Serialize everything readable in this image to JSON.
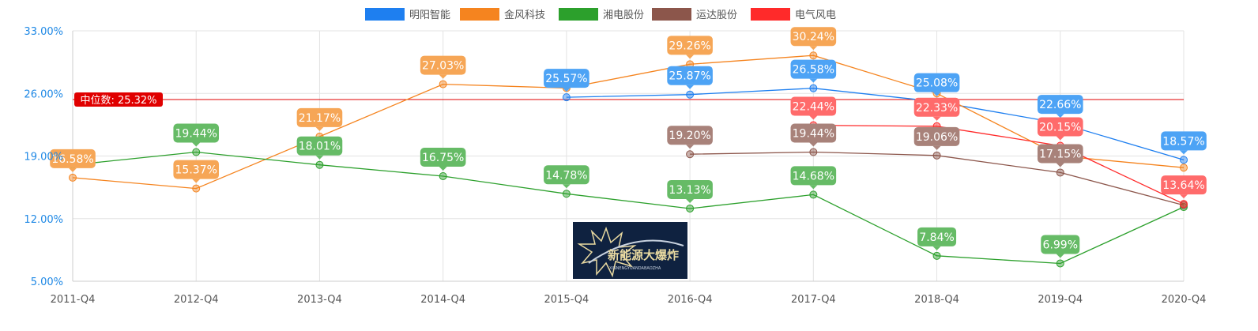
{
  "chart_data": {
    "type": "line",
    "categories": [
      "2011-Q4",
      "2012-Q4",
      "2013-Q4",
      "2014-Q4",
      "2015-Q4",
      "2016-Q4",
      "2017-Q4",
      "2018-Q4",
      "2019-Q4",
      "2020-Q4"
    ],
    "y_ticks": [
      "33.00%",
      "26.00%",
      "19.00%",
      "12.00%",
      "5.00%"
    ],
    "ylim": [
      5,
      33
    ],
    "grid": true,
    "legend_position": "top",
    "series": [
      {
        "name": "明阳智能",
        "color": "#1e7ff0",
        "label_color": "#4da3f5",
        "values": [
          null,
          null,
          null,
          null,
          25.57,
          25.87,
          26.58,
          25.08,
          22.66,
          18.57
        ],
        "labels": [
          null,
          null,
          null,
          null,
          "25.57%",
          "25.87%",
          "26.58%",
          "25.08%",
          "22.66%",
          "18.57%"
        ]
      },
      {
        "name": "金风科技",
        "color": "#f5841f",
        "label_color": "#f6a656",
        "values": [
          16.58,
          15.37,
          21.17,
          27.03,
          26.6,
          29.26,
          30.24,
          26.0,
          19.0,
          17.7
        ],
        "labels": [
          "16.58%",
          "15.37%",
          "21.17%",
          "27.03%",
          null,
          "29.26%",
          "30.24%",
          null,
          null,
          null
        ]
      },
      {
        "name": "湘电股份",
        "color": "#2ca02c",
        "label_color": "#66bb66",
        "values": [
          18.0,
          19.44,
          18.01,
          16.75,
          14.78,
          13.13,
          14.68,
          7.84,
          6.99,
          13.3
        ],
        "labels": [
          null,
          "19.44%",
          "18.01%",
          "16.75%",
          "14.78%",
          "13.13%",
          "14.68%",
          "7.84%",
          "6.99%",
          null
        ]
      },
      {
        "name": "运达股份",
        "color": "#8c564b",
        "label_color": "#a8827a",
        "values": [
          null,
          null,
          null,
          null,
          null,
          19.2,
          19.44,
          19.06,
          17.15,
          13.5
        ],
        "labels": [
          null,
          null,
          null,
          null,
          null,
          "19.20%",
          "19.44%",
          "19.06%",
          "17.15%",
          null
        ]
      },
      {
        "name": "电气风电",
        "color": "#ff2a2a",
        "label_color": "#ff6b6b",
        "values": [
          null,
          null,
          null,
          null,
          null,
          null,
          22.44,
          22.33,
          20.15,
          13.64
        ],
        "labels": [
          null,
          null,
          null,
          null,
          null,
          null,
          "22.44%",
          "22.33%",
          "20.15%",
          "13.64%"
        ]
      }
    ],
    "median_line": {
      "value": 25.32,
      "label": "中位数: 25.32%",
      "color": "#e00000"
    }
  },
  "watermark": {
    "text": "新能源大爆炸",
    "subtext": "XINNENGYUANDABAOZHA"
  }
}
